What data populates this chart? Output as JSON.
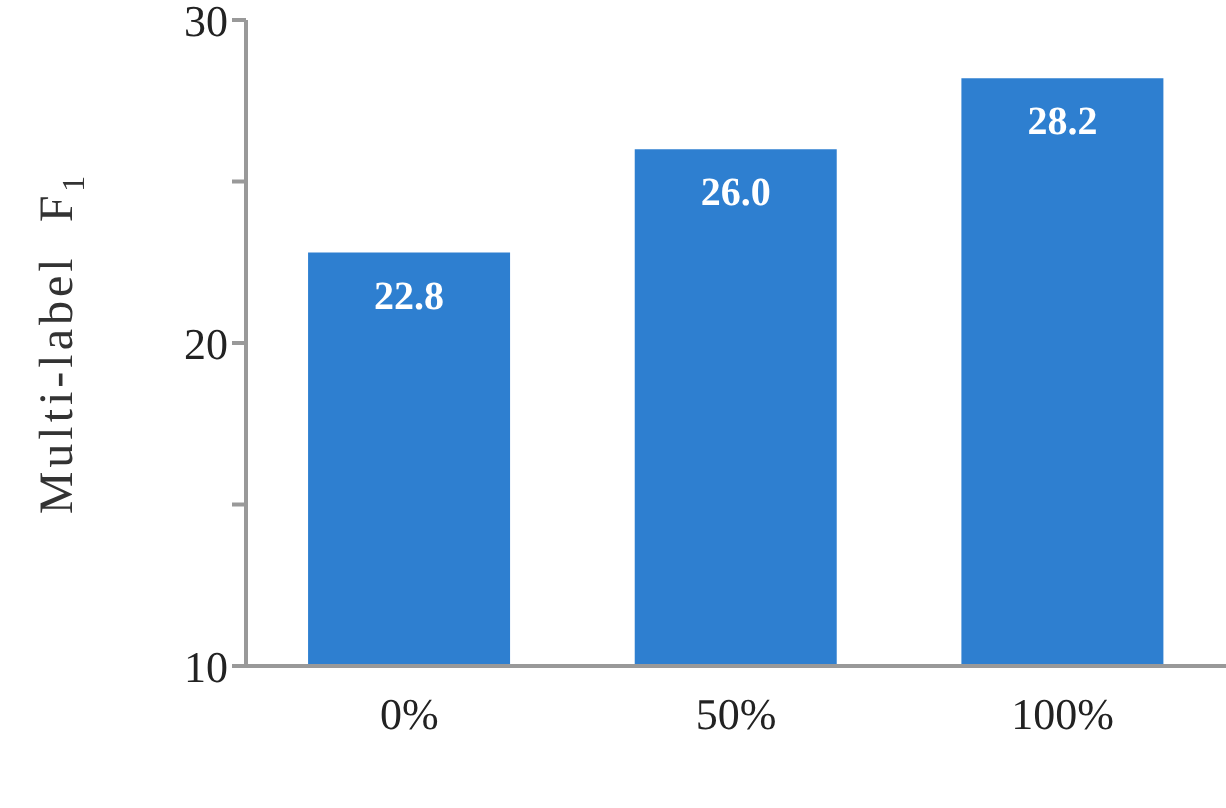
{
  "chart_data": {
    "type": "bar",
    "ylabel": "Multi-label  F$_{1}$",
    "categories": [
      "0%",
      "50%",
      "100%"
    ],
    "values": [
      22.8,
      26.0,
      28.2
    ],
    "value_labels": [
      "22.8",
      "26.0",
      "28.2"
    ],
    "color": "#2e7fd0",
    "ylim": [
      10,
      30
    ],
    "yticks": [
      10,
      {
        "value": 15,
        "label": null
      },
      20,
      {
        "value": 25,
        "label": null
      },
      30
    ],
    "grid": false
  }
}
